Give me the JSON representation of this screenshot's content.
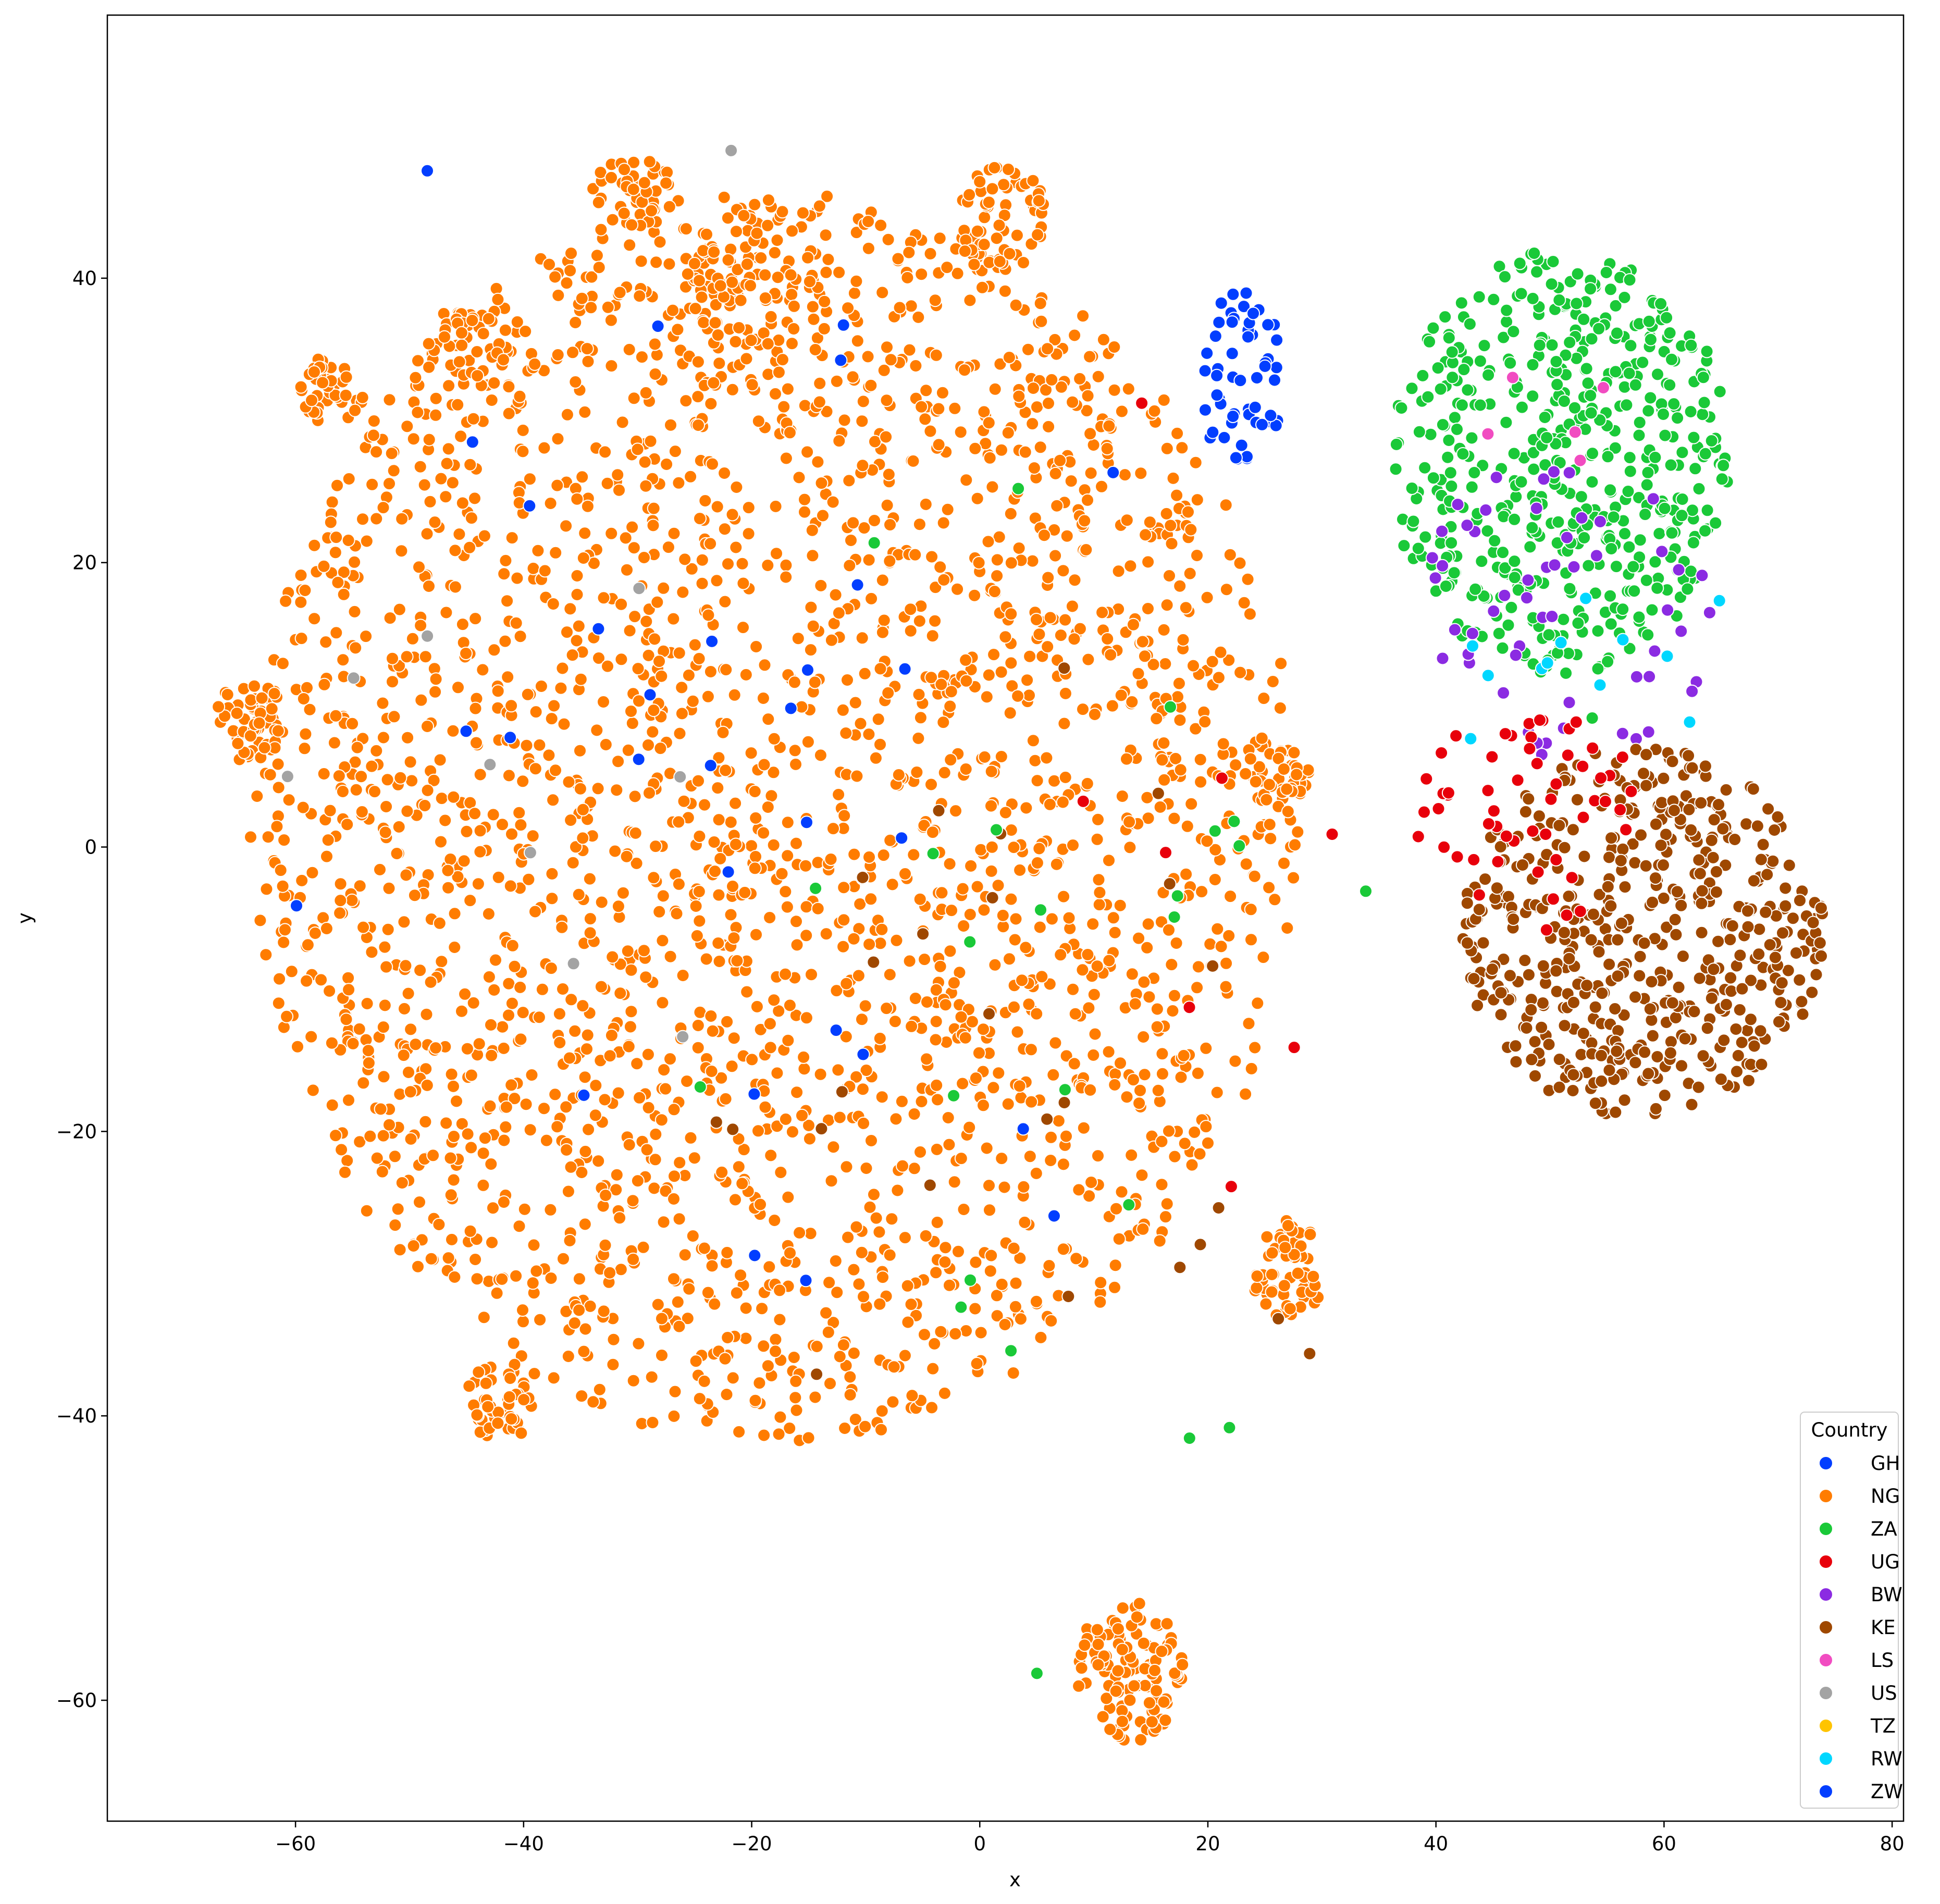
{
  "chart_data": {
    "type": "scatter",
    "title": "",
    "xlabel": "x",
    "ylabel": "y",
    "xlim": [
      -76.5,
      81
    ],
    "ylim": [
      -68.5,
      58.5
    ],
    "xticks": [
      -60,
      -40,
      -20,
      0,
      20,
      40,
      60,
      80
    ],
    "yticks": [
      -60,
      -40,
      -20,
      0,
      20,
      40
    ],
    "grid": false,
    "legend": {
      "title": "Country",
      "placement": "lower-right",
      "entries": [
        "GH",
        "NG",
        "ZA",
        "UG",
        "BW",
        "KE",
        "LS",
        "US",
        "TZ",
        "RW",
        "ZW"
      ]
    },
    "colors": {
      "GH": "#023eff",
      "NG": "#ff7c00",
      "ZA": "#1ac938",
      "UG": "#e8000b",
      "BW": "#8b2be2",
      "KE": "#9f4800",
      "LS": "#f14cc1",
      "US": "#a3a3a3",
      "TZ": "#ffc400",
      "RW": "#00d7ff",
      "ZW": "#023eff"
    },
    "clusters": [
      {
        "country": "NG",
        "shape": "blob",
        "cx": -18,
        "cy": 2,
        "rx": 46,
        "ry": 44,
        "n": 2600
      },
      {
        "country": "NG",
        "shape": "blob",
        "cx": 2,
        "cy": 44,
        "rx": 4,
        "ry": 4,
        "n": 70
      },
      {
        "country": "NG",
        "shape": "blob",
        "cx": 13,
        "cy": -58,
        "rx": 5,
        "ry": 5,
        "n": 120
      },
      {
        "country": "NG",
        "shape": "blob",
        "cx": -64,
        "cy": 9,
        "rx": 3,
        "ry": 3,
        "n": 60
      },
      {
        "country": "NG",
        "shape": "blob",
        "cx": -57,
        "cy": 32,
        "rx": 3,
        "ry": 2.5,
        "n": 40
      },
      {
        "country": "NG",
        "shape": "blob",
        "cx": -42,
        "cy": -39,
        "rx": 3,
        "ry": 3,
        "n": 50
      },
      {
        "country": "NG",
        "shape": "blob",
        "cx": -30,
        "cy": 46,
        "rx": 4,
        "ry": 2.5,
        "n": 50
      },
      {
        "country": "NG",
        "shape": "blob",
        "cx": 26,
        "cy": 5,
        "rx": 3,
        "ry": 2,
        "n": 40
      },
      {
        "country": "NG",
        "shape": "blob",
        "cx": 27,
        "cy": -30,
        "rx": 3,
        "ry": 4,
        "n": 60
      },
      {
        "country": "NG",
        "shape": "blob",
        "cx": -20,
        "cy": 40,
        "rx": 6,
        "ry": 5,
        "n": 70
      },
      {
        "country": "NG",
        "shape": "blob",
        "cx": -45,
        "cy": 35,
        "rx": 4,
        "ry": 3,
        "n": 40
      },
      {
        "country": "ZA",
        "shape": "blob",
        "cx": 51,
        "cy": 27,
        "rx": 15,
        "ry": 15,
        "n": 520
      },
      {
        "country": "BW",
        "shape": "blob",
        "cx": 52,
        "cy": 18,
        "rx": 13,
        "ry": 12,
        "n": 55
      },
      {
        "country": "KE",
        "shape": "blob",
        "cx": 58,
        "cy": -6,
        "rx": 16,
        "ry": 13,
        "n": 520
      },
      {
        "country": "UG",
        "shape": "blob",
        "cx": 48,
        "cy": 2,
        "rx": 10,
        "ry": 8,
        "n": 55
      },
      {
        "country": "GH",
        "shape": "blob",
        "cx": 23,
        "cy": 33,
        "rx": 4,
        "ry": 6,
        "n": 55
      },
      {
        "country": "GH",
        "shape": "scatter",
        "cx": -20,
        "cy": 5,
        "rx": 40,
        "ry": 40,
        "n": 30
      },
      {
        "country": "US",
        "shape": "scatter",
        "cx": -40,
        "cy": 10,
        "rx": 20,
        "ry": 30,
        "n": 10
      },
      {
        "country": "RW",
        "shape": "scatter",
        "cx": 50,
        "cy": 12,
        "rx": 20,
        "ry": 10,
        "n": 12
      },
      {
        "country": "LS",
        "shape": "scatter",
        "cx": 52,
        "cy": 28,
        "rx": 8,
        "ry": 10,
        "n": 5
      },
      {
        "country": "KE",
        "shape": "scatter",
        "cx": 5,
        "cy": -10,
        "rx": 35,
        "ry": 30,
        "n": 25
      },
      {
        "country": "ZA",
        "shape": "scatter",
        "cx": 10,
        "cy": -10,
        "rx": 30,
        "ry": 30,
        "n": 25
      },
      {
        "country": "UG",
        "shape": "scatter",
        "cx": 20,
        "cy": -5,
        "rx": 10,
        "ry": 20,
        "n": 8
      }
    ]
  }
}
